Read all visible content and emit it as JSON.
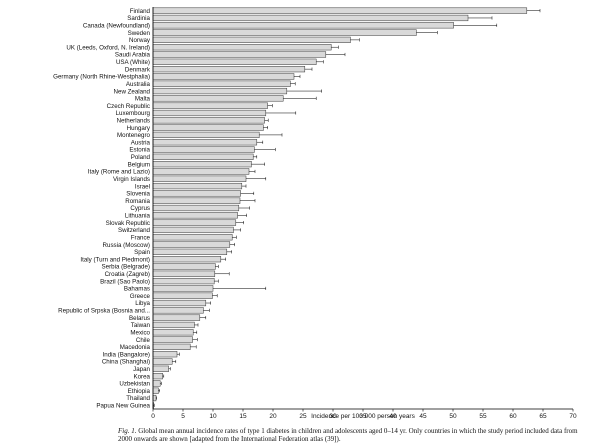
{
  "chart_data": {
    "type": "bar",
    "orientation": "horizontal",
    "title": "",
    "xlabel": "Incidence per 100 000 person years",
    "ylabel": "",
    "xlim": [
      0,
      70
    ],
    "xticks": [
      0,
      5,
      10,
      15,
      20,
      25,
      30,
      35,
      40,
      45,
      50,
      55,
      60,
      65,
      70
    ],
    "grid": false,
    "legend": "none",
    "bar_color": "#d9d9d9",
    "error_bars": true,
    "categories": [
      "Finland",
      "Sardinia",
      "Canada (Newfoundland)",
      "Sweden",
      "Norway",
      "UK (Leeds, Oxford, N. Ireland)",
      "Saudi Arabia",
      "USA (White)",
      "Denmark",
      "Germany (North Rhine-Westphalia)",
      "Australia",
      "New Zealand",
      "Malta",
      "Czech Republic",
      "Luxembourg",
      "Netherlands",
      "Hungary",
      "Montenegro",
      "Austria",
      "Estonia",
      "Poland",
      "Belgium",
      "Italy (Rome and Lazio)",
      "Virgin Islands",
      "Israel",
      "Slovenia",
      "Romania",
      "Cyprus",
      "Lithuania",
      "Slovak Republic",
      "Switzerland",
      "France",
      "Russia (Moscow)",
      "Spain",
      "Italy (Turn and Piedmont)",
      "Serbia (Belgrade)",
      "Croatia (Zagreb)",
      "Brazil (Sao Paolo)",
      "Bahamas",
      "Greece",
      "Libya",
      "Republic of Srpska (Bosnia and...",
      "Belarus",
      "Taiwan",
      "Mexico",
      "Chile",
      "Macedonia",
      "India (Bangalore)",
      "China (Shanghai)",
      "Japan",
      "Korea",
      "Uzbekistan",
      "Ethiopia",
      "Thailand",
      "Papua New Guinea"
    ],
    "values": [
      62.3,
      52.5,
      50.1,
      43.9,
      32.9,
      29.7,
      28.8,
      27.2,
      25.3,
      23.5,
      22.9,
      22.3,
      21.7,
      19.1,
      18.8,
      18.6,
      18.4,
      17.7,
      17.3,
      16.9,
      16.7,
      16.4,
      16.0,
      15.5,
      14.8,
      14.6,
      14.5,
      14.3,
      14.1,
      13.8,
      13.4,
      13.2,
      12.8,
      12.3,
      11.3,
      10.4,
      10.3,
      10.2,
      10.0,
      9.9,
      8.8,
      8.4,
      7.8,
      6.9,
      6.7,
      6.6,
      6.2,
      4.0,
      3.2,
      2.6,
      1.6,
      1.2,
      0.9,
      0.5,
      0.1
    ],
    "errors": [
      2.2,
      4.0,
      7.2,
      3.5,
      1.5,
      1.2,
      3.2,
      1.2,
      1.2,
      1.0,
      0.8,
      5.8,
      5.5,
      0.8,
      5.0,
      0.6,
      0.7,
      3.8,
      1.0,
      3.5,
      0.6,
      2.2,
      1.0,
      3.3,
      0.7,
      2.2,
      2.5,
      1.8,
      1.5,
      1.3,
      1.2,
      0.7,
      0.8,
      0.8,
      0.8,
      0.5,
      2.4,
      0.7,
      8.8,
      0.8,
      0.8,
      1.0,
      1.0,
      0.6,
      0.6,
      0.8,
      1.0,
      0.4,
      0.6,
      0.3,
      0.2,
      0.2,
      0.2,
      0.1,
      0.1
    ]
  },
  "caption": {
    "fig_label": "Fig. 1.",
    "text": " Global mean annual incidence rates of type 1 diabetes in children and adolescents aged 0–14 yr. Only countries in which the study period included data from 2000 onwards are shown [adapted from the International Federation atlas (39])."
  }
}
